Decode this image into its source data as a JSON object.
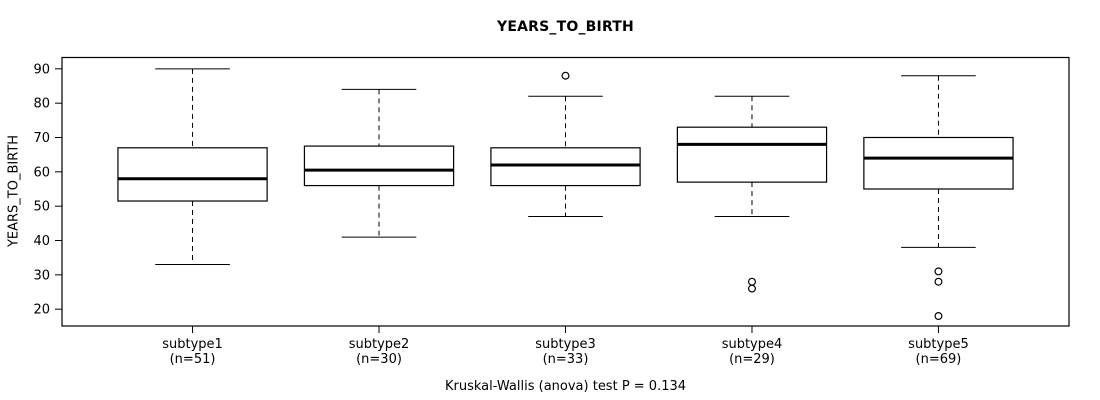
{
  "title": "YEARS_TO_BIRTH",
  "caption": "Kruskal-Wallis (anova) test P = 0.134",
  "colors": {
    "background": "#ffffff",
    "line": "#000000",
    "box_fill": "#ffffff",
    "text": "#000000"
  },
  "chart_data": {
    "type": "boxplot",
    "title": "YEARS_TO_BIRTH",
    "xlabel": "",
    "ylabel": "YEARS_TO_BIRTH",
    "annotation": "Kruskal-Wallis (anova) test P = 0.134",
    "grid": false,
    "legend": "none",
    "yticks": [
      20,
      30,
      40,
      50,
      60,
      70,
      80,
      90
    ],
    "ylim": [
      15.1,
      93.3
    ],
    "categories": [
      "subtype1",
      "subtype2",
      "subtype3",
      "subtype4",
      "subtype5"
    ],
    "category_sublabels": [
      "(n=51)",
      "(n=30)",
      "(n=33)",
      "(n=29)",
      "(n=69)"
    ],
    "series": [
      {
        "name": "subtype1",
        "n": 51,
        "whisker_low": 33,
        "q1": 51.5,
        "median": 58,
        "q3": 67,
        "whisker_high": 90,
        "outliers": []
      },
      {
        "name": "subtype2",
        "n": 30,
        "whisker_low": 41,
        "q1": 56,
        "median": 60.5,
        "q3": 67.5,
        "whisker_high": 84,
        "outliers": []
      },
      {
        "name": "subtype3",
        "n": 33,
        "whisker_low": 47,
        "q1": 56,
        "median": 62,
        "q3": 67,
        "whisker_high": 82,
        "outliers": [
          88
        ]
      },
      {
        "name": "subtype4",
        "n": 29,
        "whisker_low": 47,
        "q1": 57,
        "median": 68,
        "q3": 73,
        "whisker_high": 82,
        "outliers": [
          28,
          26
        ]
      },
      {
        "name": "subtype5",
        "n": 69,
        "whisker_low": 38,
        "q1": 55,
        "median": 64,
        "q3": 70,
        "whisker_high": 88,
        "outliers": [
          31,
          28,
          18
        ]
      }
    ]
  }
}
